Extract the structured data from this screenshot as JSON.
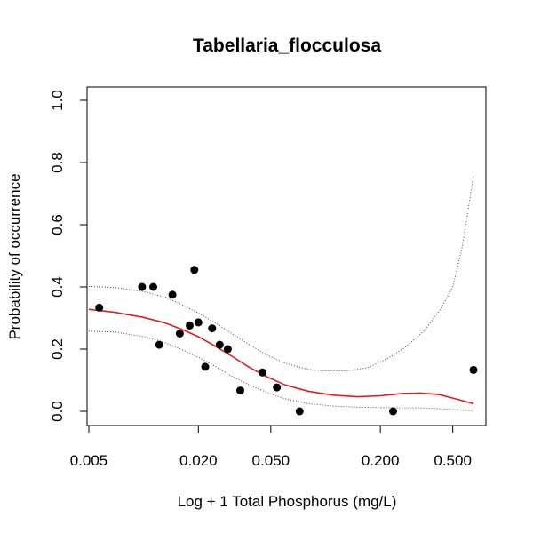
{
  "chart_data": {
    "type": "scatter",
    "title": "Tabellaria_flocculosa",
    "xlabel": "Log + 1 Total Phosphorus (mg/L)",
    "ylabel": "Probability of occurrence",
    "x_scale": "log",
    "xlim": [
      0.005,
      0.7
    ],
    "ylim": [
      0.0,
      1.0
    ],
    "x_ticks": [
      0.005,
      0.02,
      0.05,
      0.2,
      0.5
    ],
    "x_tick_labels": [
      "0.005",
      "0.020",
      "0.050",
      "0.200",
      "0.500"
    ],
    "y_ticks": [
      0.0,
      0.2,
      0.4,
      0.6,
      0.8,
      1.0
    ],
    "y_tick_labels": [
      "0.0",
      "0.2",
      "0.4",
      "0.6",
      "0.8",
      "1.0"
    ],
    "grid": false,
    "colors": {
      "points": "#000000",
      "fit": "#e8191c",
      "band": "#444444"
    },
    "points": [
      {
        "x": 0.0057,
        "y": 0.333
      },
      {
        "x": 0.0098,
        "y": 0.4
      },
      {
        "x": 0.0113,
        "y": 0.4
      },
      {
        "x": 0.0122,
        "y": 0.214
      },
      {
        "x": 0.0144,
        "y": 0.375
      },
      {
        "x": 0.0158,
        "y": 0.25
      },
      {
        "x": 0.0179,
        "y": 0.276
      },
      {
        "x": 0.019,
        "y": 0.455
      },
      {
        "x": 0.02,
        "y": 0.286
      },
      {
        "x": 0.0218,
        "y": 0.143
      },
      {
        "x": 0.0238,
        "y": 0.267
      },
      {
        "x": 0.0262,
        "y": 0.214
      },
      {
        "x": 0.029,
        "y": 0.2
      },
      {
        "x": 0.034,
        "y": 0.067
      },
      {
        "x": 0.045,
        "y": 0.125
      },
      {
        "x": 0.054,
        "y": 0.077
      },
      {
        "x": 0.072,
        "y": 0.0
      },
      {
        "x": 0.235,
        "y": 0.0
      },
      {
        "x": 0.65,
        "y": 0.133
      }
    ],
    "fit_line": [
      {
        "x": 0.005,
        "y": 0.328
      },
      {
        "x": 0.007,
        "y": 0.318
      },
      {
        "x": 0.01,
        "y": 0.302
      },
      {
        "x": 0.013,
        "y": 0.285
      },
      {
        "x": 0.016,
        "y": 0.265
      },
      {
        "x": 0.02,
        "y": 0.24
      },
      {
        "x": 0.025,
        "y": 0.208
      },
      {
        "x": 0.03,
        "y": 0.18
      },
      {
        "x": 0.038,
        "y": 0.142
      },
      {
        "x": 0.048,
        "y": 0.11
      },
      {
        "x": 0.06,
        "y": 0.085
      },
      {
        "x": 0.08,
        "y": 0.065
      },
      {
        "x": 0.11,
        "y": 0.052
      },
      {
        "x": 0.15,
        "y": 0.047
      },
      {
        "x": 0.2,
        "y": 0.05
      },
      {
        "x": 0.26,
        "y": 0.057
      },
      {
        "x": 0.33,
        "y": 0.059
      },
      {
        "x": 0.42,
        "y": 0.054
      },
      {
        "x": 0.52,
        "y": 0.04
      },
      {
        "x": 0.65,
        "y": 0.025
      }
    ],
    "upper_band": [
      {
        "x": 0.005,
        "y": 0.402
      },
      {
        "x": 0.007,
        "y": 0.398
      },
      {
        "x": 0.01,
        "y": 0.385
      },
      {
        "x": 0.013,
        "y": 0.368
      },
      {
        "x": 0.016,
        "y": 0.345
      },
      {
        "x": 0.02,
        "y": 0.316
      },
      {
        "x": 0.025,
        "y": 0.283
      },
      {
        "x": 0.03,
        "y": 0.253
      },
      {
        "x": 0.038,
        "y": 0.215
      },
      {
        "x": 0.048,
        "y": 0.18
      },
      {
        "x": 0.06,
        "y": 0.155
      },
      {
        "x": 0.08,
        "y": 0.135
      },
      {
        "x": 0.1,
        "y": 0.13
      },
      {
        "x": 0.13,
        "y": 0.13
      },
      {
        "x": 0.17,
        "y": 0.14
      },
      {
        "x": 0.22,
        "y": 0.17
      },
      {
        "x": 0.28,
        "y": 0.21
      },
      {
        "x": 0.35,
        "y": 0.26
      },
      {
        "x": 0.43,
        "y": 0.33
      },
      {
        "x": 0.5,
        "y": 0.4
      },
      {
        "x": 0.56,
        "y": 0.52
      },
      {
        "x": 0.62,
        "y": 0.68
      },
      {
        "x": 0.65,
        "y": 0.76
      }
    ],
    "lower_band": [
      {
        "x": 0.005,
        "y": 0.258
      },
      {
        "x": 0.007,
        "y": 0.255
      },
      {
        "x": 0.01,
        "y": 0.24
      },
      {
        "x": 0.013,
        "y": 0.222
      },
      {
        "x": 0.016,
        "y": 0.2
      },
      {
        "x": 0.02,
        "y": 0.174
      },
      {
        "x": 0.025,
        "y": 0.143
      },
      {
        "x": 0.03,
        "y": 0.115
      },
      {
        "x": 0.038,
        "y": 0.085
      },
      {
        "x": 0.048,
        "y": 0.06
      },
      {
        "x": 0.06,
        "y": 0.04
      },
      {
        "x": 0.08,
        "y": 0.025
      },
      {
        "x": 0.11,
        "y": 0.017
      },
      {
        "x": 0.15,
        "y": 0.013
      },
      {
        "x": 0.2,
        "y": 0.012
      },
      {
        "x": 0.26,
        "y": 0.011
      },
      {
        "x": 0.33,
        "y": 0.011
      },
      {
        "x": 0.42,
        "y": 0.009
      },
      {
        "x": 0.52,
        "y": 0.005
      },
      {
        "x": 0.65,
        "y": 0.002
      }
    ]
  }
}
